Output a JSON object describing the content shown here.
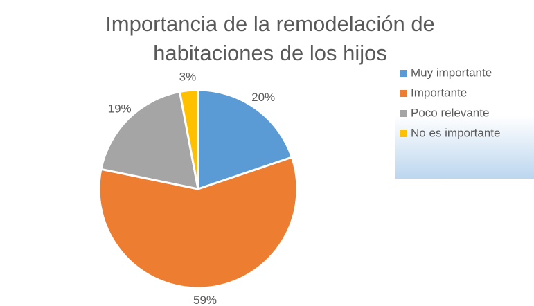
{
  "chart_data": {
    "type": "pie",
    "title": "Importancia de la remodelación de habitaciones de los hijos",
    "categories": [
      "Muy importante",
      "Importante",
      "Poco relevante",
      "No es importante"
    ],
    "values": [
      20,
      59,
      19,
      3
    ],
    "value_labels": [
      "20%",
      "59%",
      "19%",
      "3%"
    ],
    "colors": [
      "#5b9bd5",
      "#ed7d31",
      "#a5a5a5",
      "#ffc000"
    ],
    "legend": "right"
  }
}
